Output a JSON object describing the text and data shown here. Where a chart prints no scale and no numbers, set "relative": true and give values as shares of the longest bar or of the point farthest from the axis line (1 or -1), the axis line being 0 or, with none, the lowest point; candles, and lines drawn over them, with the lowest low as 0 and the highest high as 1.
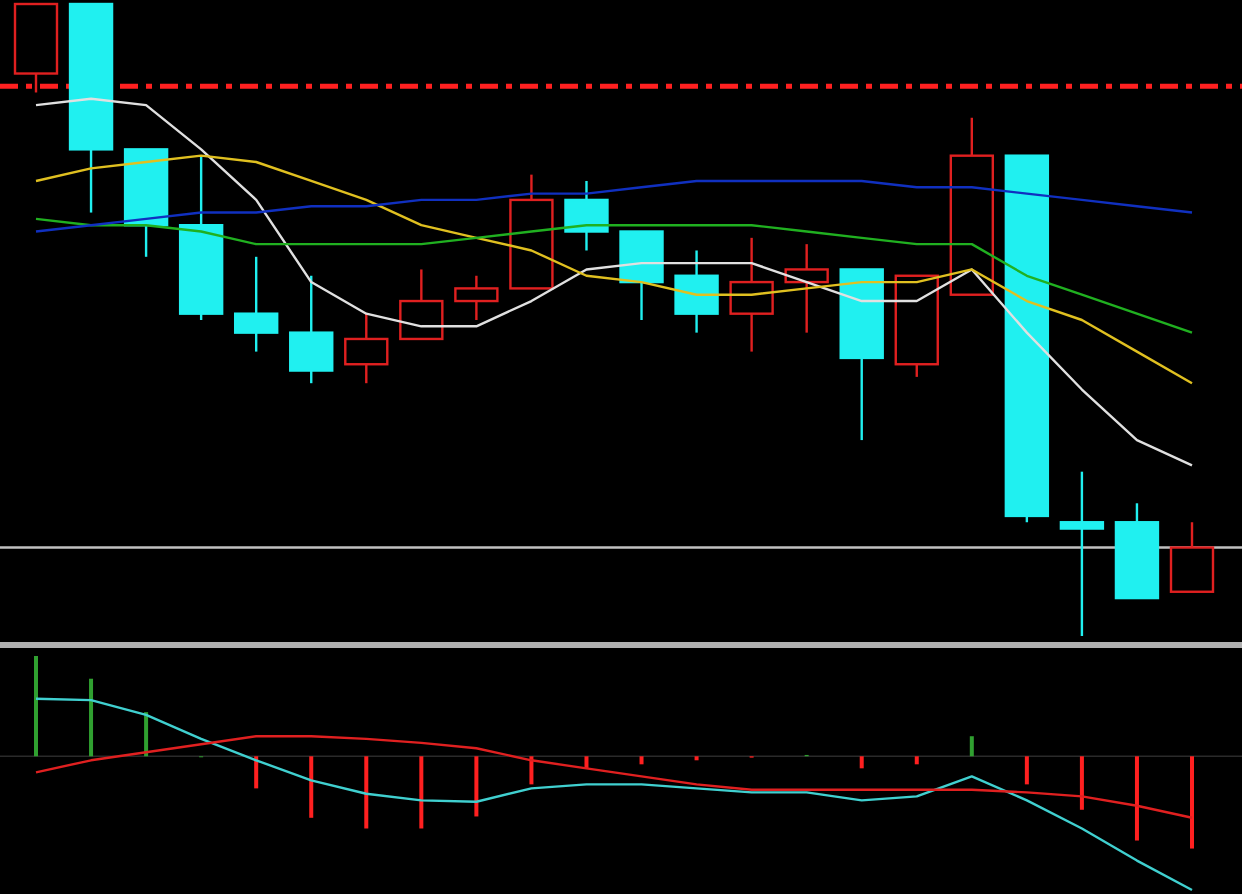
{
  "chart_data": [
    {
      "type": "candlestick",
      "relative": true,
      "categories": [
        null,
        null,
        null,
        null,
        null,
        null,
        null,
        null,
        null,
        null,
        null,
        null,
        null,
        null,
        null,
        null,
        null,
        null,
        null,
        null,
        null,
        null
      ],
      "ohlc": [
        [
          0.89,
          1.0,
          0.86,
          1.0
        ],
        [
          1.0,
          1.0,
          0.67,
          0.77
        ],
        [
          0.77,
          0.77,
          0.6,
          0.65
        ],
        [
          0.65,
          0.76,
          0.5,
          0.51
        ],
        [
          0.51,
          0.6,
          0.45,
          0.48
        ],
        [
          0.48,
          0.57,
          0.4,
          0.42
        ],
        [
          0.43,
          0.51,
          0.4,
          0.47
        ],
        [
          0.47,
          0.58,
          0.47,
          0.53
        ],
        [
          0.53,
          0.57,
          0.5,
          0.55
        ],
        [
          0.55,
          0.73,
          0.55,
          0.69
        ],
        [
          0.69,
          0.72,
          0.61,
          0.64
        ],
        [
          0.64,
          0.64,
          0.5,
          0.56
        ],
        [
          0.57,
          0.61,
          0.48,
          0.51
        ],
        [
          0.51,
          0.63,
          0.45,
          0.56
        ],
        [
          0.56,
          0.62,
          0.48,
          0.58
        ],
        [
          0.58,
          0.58,
          0.31,
          0.44
        ],
        [
          0.43,
          0.57,
          0.41,
          0.57
        ],
        [
          0.54,
          0.82,
          0.54,
          0.76
        ],
        [
          0.76,
          0.76,
          0.18,
          0.19
        ],
        [
          0.18,
          0.26,
          0.0,
          0.17
        ],
        [
          0.18,
          0.21,
          0.06,
          0.06
        ],
        [
          0.07,
          0.18,
          0.07,
          0.14
        ]
      ],
      "series": [
        {
          "type": "line",
          "color": "#e0e0e0",
          "values": [
            0.84,
            0.85,
            0.84,
            0.77,
            0.69,
            0.56,
            0.51,
            0.49,
            0.49,
            0.53,
            0.58,
            0.59,
            0.59,
            0.59,
            0.56,
            0.53,
            0.53,
            0.58,
            0.48,
            0.39,
            0.31,
            0.27
          ]
        },
        {
          "type": "line",
          "color": "#e0c020",
          "values": [
            0.72,
            0.74,
            0.75,
            0.76,
            0.75,
            0.72,
            0.69,
            0.65,
            0.63,
            0.61,
            0.57,
            0.56,
            0.54,
            0.54,
            0.55,
            0.56,
            0.56,
            0.58,
            0.53,
            0.5,
            0.45,
            0.4
          ]
        },
        {
          "type": "line",
          "color": "#20b020",
          "values": [
            0.66,
            0.65,
            0.65,
            0.64,
            0.62,
            0.62,
            0.62,
            0.62,
            0.63,
            0.64,
            0.65,
            0.65,
            0.65,
            0.65,
            0.64,
            0.63,
            0.62,
            0.62,
            0.57,
            0.54,
            0.51,
            0.48
          ]
        },
        {
          "type": "line",
          "color": "#1030c0",
          "values": [
            0.64,
            0.65,
            0.66,
            0.67,
            0.67,
            0.68,
            0.68,
            0.69,
            0.69,
            0.7,
            0.7,
            0.71,
            0.72,
            0.72,
            0.72,
            0.72,
            0.71,
            0.71,
            0.7,
            0.69,
            0.68,
            0.67
          ]
        }
      ],
      "ref_lines": [
        {
          "axis": "y",
          "value": 0.87,
          "color": "#ff2020",
          "line_style": "dashed"
        },
        {
          "axis": "y",
          "value": 0.14,
          "color": "#c0c0c0",
          "line_style": "solid"
        }
      ]
    },
    {
      "type": "bar",
      "relative": true,
      "categories": [
        null,
        null,
        null,
        null,
        null,
        null,
        null,
        null,
        null,
        null,
        null,
        null,
        null,
        null,
        null,
        null,
        null,
        null,
        null,
        null,
        null,
        null
      ],
      "series": [
        {
          "type": "bar",
          "values": [
            0.75,
            0.58,
            0.33,
            0,
            -0.24,
            -0.46,
            -0.54,
            -0.54,
            -0.45,
            -0.21,
            -0.09,
            -0.06,
            -0.03,
            -0.01,
            0.01,
            -0.09,
            -0.06,
            0.15,
            -0.21,
            -0.4,
            -0.63,
            -0.69
          ],
          "colors": [
            "#30a030",
            "#30a030",
            "#30a030",
            "#30a030",
            "#ff2020",
            "#ff2020",
            "#ff2020",
            "#ff2020",
            "#ff2020",
            "#ff2020",
            "#ff2020",
            "#ff2020",
            "#ff2020",
            "#ff2020",
            "#30a030",
            "#ff2020",
            "#ff2020",
            "#30a030",
            "#ff2020",
            "#ff2020",
            "#ff2020",
            "#ff2020"
          ]
        },
        {
          "type": "line",
          "color": "#40d0d0",
          "values": [
            0.43,
            0.42,
            0.31,
            0.13,
            -0.03,
            -0.18,
            -0.28,
            -0.33,
            -0.34,
            -0.24,
            -0.21,
            -0.21,
            -0.24,
            -0.27,
            -0.27,
            -0.33,
            -0.3,
            -0.15,
            -0.33,
            -0.54,
            -0.78,
            -1
          ]
        },
        {
          "type": "line",
          "color": "#e02020",
          "values": [
            -0.12,
            -0.03,
            0.03,
            0.09,
            0.15,
            0.15,
            0.13,
            0.1,
            0.06,
            -0.03,
            -0.09,
            -0.15,
            -0.21,
            -0.25,
            -0.25,
            -0.25,
            -0.25,
            -0.25,
            -0.27,
            -0.3,
            -0.37,
            -0.46
          ]
        }
      ]
    }
  ]
}
